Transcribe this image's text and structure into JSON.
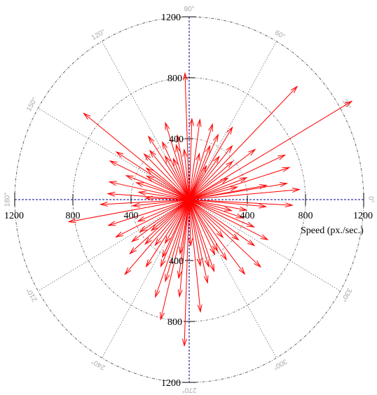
{
  "chart_data": {
    "type": "polar-vector",
    "xlabel": "Speed (px./sec.)",
    "r_range": [
      0,
      1200
    ],
    "r_ticks": [
      400,
      800,
      1200
    ],
    "horizontal_tick_labels": [
      "1200",
      "800",
      "400",
      "400",
      "800",
      "1200"
    ],
    "vertical_tick_labels": [
      "1200",
      "800",
      "400",
      "400",
      "800",
      "1200"
    ],
    "angle_labels": [
      "0°",
      "30°",
      "60°",
      "90°",
      "120°",
      "150°",
      "180°",
      "210°",
      "240°",
      "270°",
      "300°",
      "330°"
    ],
    "grid": true,
    "colors": {
      "vectors": "#ff0000",
      "axes": "#00008b",
      "grid": "#555555",
      "angle_labels": "#a8a8a8"
    },
    "vectors": [
      {
        "angle": 30,
        "speed": 1290
      },
      {
        "angle": 45,
        "speed": 1050
      },
      {
        "angle": 17,
        "speed": 720
      },
      {
        "angle": 5,
        "speed": 760
      },
      {
        "angle": -3,
        "speed": 710
      },
      {
        "angle": 9,
        "speed": 680
      },
      {
        "angle": 24,
        "speed": 720
      },
      {
        "angle": 36,
        "speed": 560
      },
      {
        "angle": 50,
        "speed": 460
      },
      {
        "angle": 58,
        "speed": 560
      },
      {
        "angle": 65,
        "speed": 470
      },
      {
        "angle": 72,
        "speed": 520
      },
      {
        "angle": 82,
        "speed": 530
      },
      {
        "angle": 88,
        "speed": 530
      },
      {
        "angle": 92,
        "speed": 830
      },
      {
        "angle": 101,
        "speed": 430
      },
      {
        "angle": 108,
        "speed": 530
      },
      {
        "angle": 116,
        "speed": 420
      },
      {
        "angle": 124,
        "speed": 500
      },
      {
        "angle": 130,
        "speed": 420
      },
      {
        "angle": 142,
        "speed": 920
      },
      {
        "angle": 136,
        "speed": 430
      },
      {
        "angle": 148,
        "speed": 590
      },
      {
        "angle": 155,
        "speed": 600
      },
      {
        "angle": 160,
        "speed": 460
      },
      {
        "angle": 168,
        "speed": 560
      },
      {
        "angle": 176,
        "speed": 560
      },
      {
        "angle": 183,
        "speed": 610
      },
      {
        "angle": 190,
        "speed": 840
      },
      {
        "angle": 197,
        "speed": 580
      },
      {
        "angle": 206,
        "speed": 560
      },
      {
        "angle": 215,
        "speed": 480
      },
      {
        "angle": 221,
        "speed": 540
      },
      {
        "angle": 228,
        "speed": 660
      },
      {
        "angle": 236,
        "speed": 530
      },
      {
        "angle": 244,
        "speed": 420
      },
      {
        "angle": 250,
        "speed": 680
      },
      {
        "angle": 253,
        "speed": 560
      },
      {
        "angle": 256,
        "speed": 810
      },
      {
        "angle": 264,
        "speed": 640
      },
      {
        "angle": 268,
        "speed": 960
      },
      {
        "angle": 276,
        "speed": 740
      },
      {
        "angle": 283,
        "speed": 560
      },
      {
        "angle": 290,
        "speed": 500
      },
      {
        "angle": 296,
        "speed": 400
      },
      {
        "angle": 303,
        "speed": 470
      },
      {
        "angle": 308,
        "speed": 620
      },
      {
        "angle": 318,
        "speed": 660
      },
      {
        "angle": 326,
        "speed": 540
      },
      {
        "angle": 334,
        "speed": 600
      },
      {
        "angle": 342,
        "speed": 390
      },
      {
        "angle": 350,
        "speed": 400
      },
      {
        "angle": 355,
        "speed": 530
      },
      {
        "angle": 10,
        "speed": 540
      },
      {
        "angle": 14,
        "speed": 340
      },
      {
        "angle": 20,
        "speed": 420
      },
      {
        "angle": 40,
        "speed": 390
      },
      {
        "angle": 54,
        "speed": 350
      },
      {
        "angle": 62,
        "speed": 250
      },
      {
        "angle": 77,
        "speed": 310
      },
      {
        "angle": 96,
        "speed": 330
      },
      {
        "angle": 112,
        "speed": 290
      },
      {
        "angle": 120,
        "speed": 330
      },
      {
        "angle": 145,
        "speed": 360
      },
      {
        "angle": 163,
        "speed": 380
      },
      {
        "angle": 172,
        "speed": 350
      },
      {
        "angle": 186,
        "speed": 390
      },
      {
        "angle": 202,
        "speed": 380
      },
      {
        "angle": 212,
        "speed": 400
      },
      {
        "angle": 224,
        "speed": 420
      },
      {
        "angle": 232,
        "speed": 380
      },
      {
        "angle": 240,
        "speed": 330
      },
      {
        "angle": 260,
        "speed": 360
      },
      {
        "angle": 272,
        "speed": 300
      },
      {
        "angle": 280,
        "speed": 440
      },
      {
        "angle": 287,
        "speed": 460
      },
      {
        "angle": 300,
        "speed": 390
      },
      {
        "angle": 313,
        "speed": 340
      },
      {
        "angle": 322,
        "speed": 430
      },
      {
        "angle": 338,
        "speed": 480
      },
      {
        "angle": 346,
        "speed": 300
      },
      {
        "angle": 28,
        "speed": 300
      },
      {
        "angle": 68,
        "speed": 380
      },
      {
        "angle": 104,
        "speed": 370
      },
      {
        "angle": 152,
        "speed": 330
      },
      {
        "angle": 178,
        "speed": 300
      },
      {
        "angle": 218,
        "speed": 330
      },
      {
        "angle": 246,
        "speed": 480
      },
      {
        "angle": 262,
        "speed": 520
      }
    ]
  }
}
